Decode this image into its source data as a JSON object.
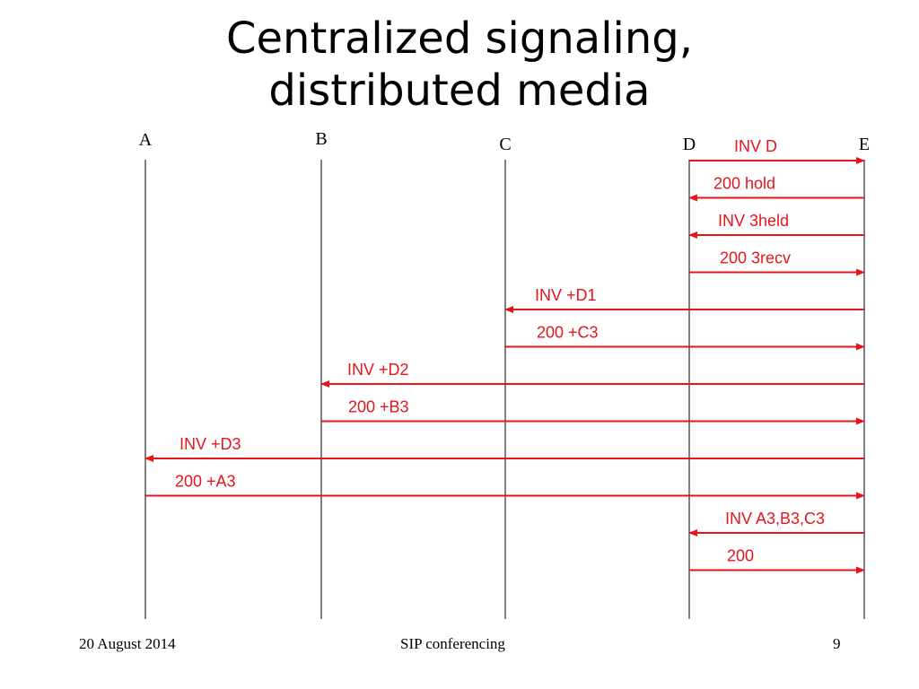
{
  "title": {
    "line1": "Centralized signaling,",
    "line2": "distributed media"
  },
  "participants": [
    {
      "id": "A",
      "label": "A"
    },
    {
      "id": "B",
      "label": "B"
    },
    {
      "id": "C",
      "label": "C"
    },
    {
      "id": "D",
      "label": "D"
    },
    {
      "id": "E",
      "label": "E"
    }
  ],
  "messages": [
    {
      "label": "INV D",
      "from": "D",
      "to": "E"
    },
    {
      "label": "200 hold",
      "from": "E",
      "to": "D"
    },
    {
      "label": "INV 3held",
      "from": "E",
      "to": "D"
    },
    {
      "label": "200 3recv",
      "from": "D",
      "to": "E"
    },
    {
      "label": "INV +D1",
      "from": "E",
      "to": "C"
    },
    {
      "label": "200 +C3",
      "from": "C",
      "to": "E"
    },
    {
      "label": "INV +D2",
      "from": "E",
      "to": "B"
    },
    {
      "label": "200 +B3",
      "from": "B",
      "to": "E"
    },
    {
      "label": "INV +D3",
      "from": "E",
      "to": "A"
    },
    {
      "label": "200 +A3",
      "from": "A",
      "to": "E"
    },
    {
      "label": "INV A3,B3,C3",
      "from": "E",
      "to": "D"
    },
    {
      "label": "200",
      "from": "D",
      "to": "E"
    }
  ],
  "colors": {
    "message": "#e8141b",
    "lifeline": "#000000"
  },
  "footer": {
    "date": "20 August 2014",
    "center": "SIP conferencing",
    "page": "9"
  }
}
